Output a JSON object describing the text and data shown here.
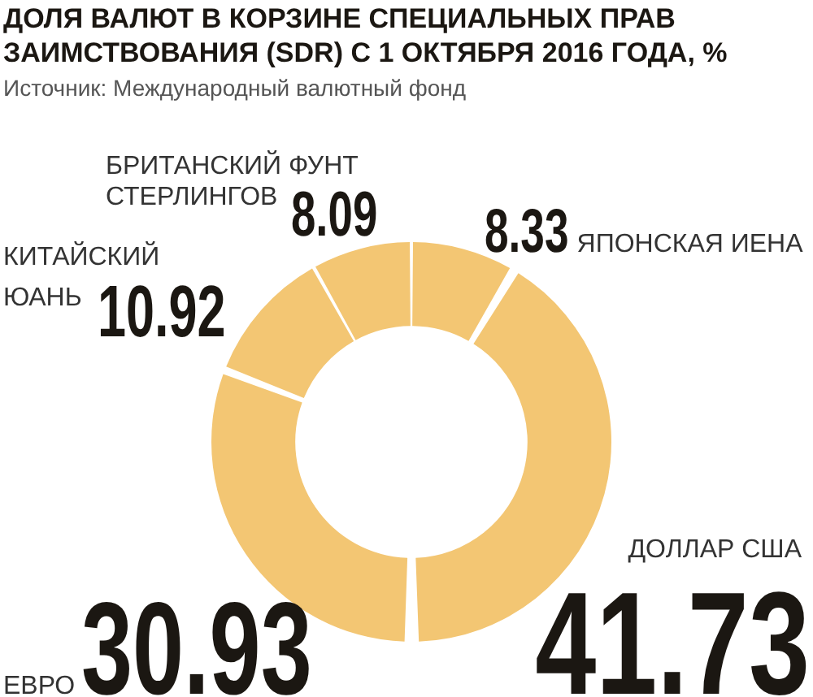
{
  "chart_data": {
    "type": "donut",
    "title": "ДОЛЯ ВАЛЮТ В КОРЗИНЕ СПЕЦИАЛЬНЫХ ПРАВ ЗАИМСТВОВАНИЯ (SDR) С 1 ОКТЯБРЯ 2016 ГОДА, %",
    "annotations": [
      "Источник: Международный валютный фонд"
    ],
    "categories": [
      "ЯПОНСКАЯ ИЕНА",
      "ДОЛЛАР США",
      "ЕВРО",
      "КИТАЙСКИЙ ЮАНЬ",
      "БРИТАНСКИЙ ФУНТ СТЕРЛИНГОВ"
    ],
    "values": [
      8.33,
      41.73,
      30.93,
      10.92,
      8.09
    ],
    "colors": [
      "#f3c673",
      "#f3c673",
      "#f3c673",
      "#f3c673",
      "#f3c673"
    ],
    "data_labels": true
  }
}
